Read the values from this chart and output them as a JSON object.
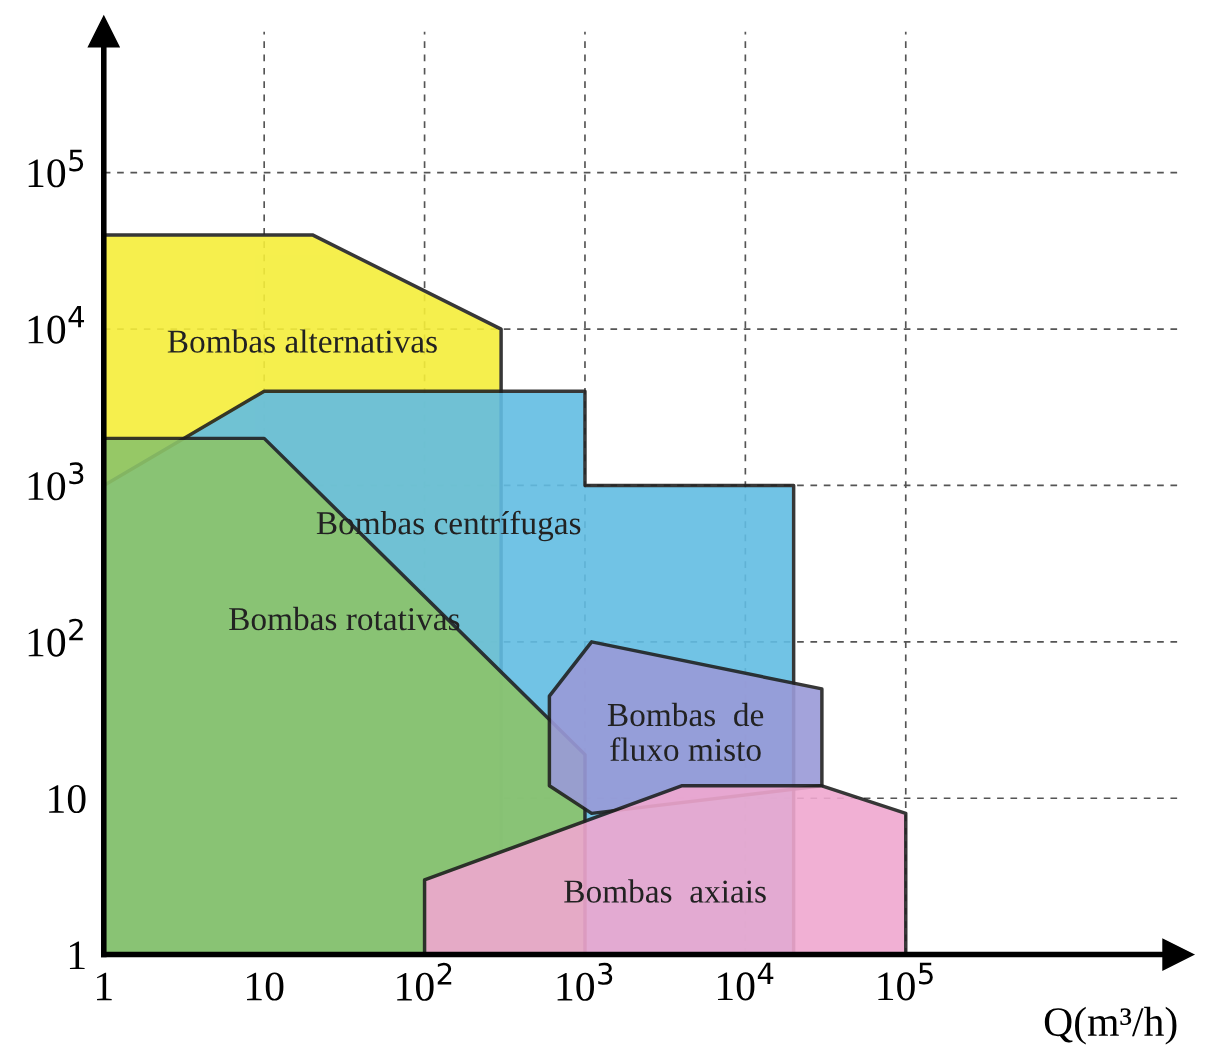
{
  "chart_data": {
    "type": "area",
    "xlabel": "Q(m³/h)",
    "log": "xy",
    "grid": true,
    "xlim": [
      1,
      5000000
    ],
    "ylim": [
      1,
      800000
    ],
    "xticks": [
      1,
      10,
      {
        "value": 100,
        "label": "10$^{2}$"
      },
      {
        "value": 1000,
        "label": "10$^{3}$"
      },
      {
        "value": 10000,
        "label": "10$^{4}$"
      },
      {
        "value": 100000,
        "label": "10$^{5}$"
      }
    ],
    "yticks": [
      1,
      10,
      {
        "value": 100,
        "label": "10$^{2}$"
      },
      {
        "value": 1000,
        "label": "10$^{3}$"
      },
      {
        "value": 10000,
        "label": "10$^{4}$"
      },
      {
        "value": 100000,
        "label": "10$^{5}$"
      }
    ],
    "series": [
      {
        "name": "Bombas alternativas",
        "color": "#f5ee3a",
        "x": [
          1,
          1,
          20,
          300,
          300
        ],
        "values": [
          1,
          40000,
          40000,
          10000,
          1
        ]
      },
      {
        "name": "Bombas centrífugas",
        "color": "#62bde3",
        "x": [
          1,
          1,
          10,
          1000,
          1000,
          20000,
          20000
        ],
        "values": [
          1,
          1000,
          4000,
          4000,
          1000,
          1000,
          1
        ]
      },
      {
        "name": "Bombas rotativas",
        "color": "#8cc46a",
        "x": [
          1,
          1,
          10,
          1000,
          1000
        ],
        "values": [
          1,
          2000,
          2000,
          19,
          1
        ]
      },
      {
        "name": "Bombas  de\nfluxo misto",
        "color": "#9a9ad8",
        "x": [
          600,
          1100,
          30000,
          30000,
          1100,
          600
        ],
        "values": [
          45,
          100,
          50,
          12,
          8,
          12
        ]
      },
      {
        "name": "Bombas  axiais",
        "color": "#f0a8d0",
        "x": [
          100,
          100,
          4000,
          30000,
          100000,
          100000
        ],
        "values": [
          1,
          3,
          12,
          12,
          8,
          1
        ]
      }
    ]
  }
}
